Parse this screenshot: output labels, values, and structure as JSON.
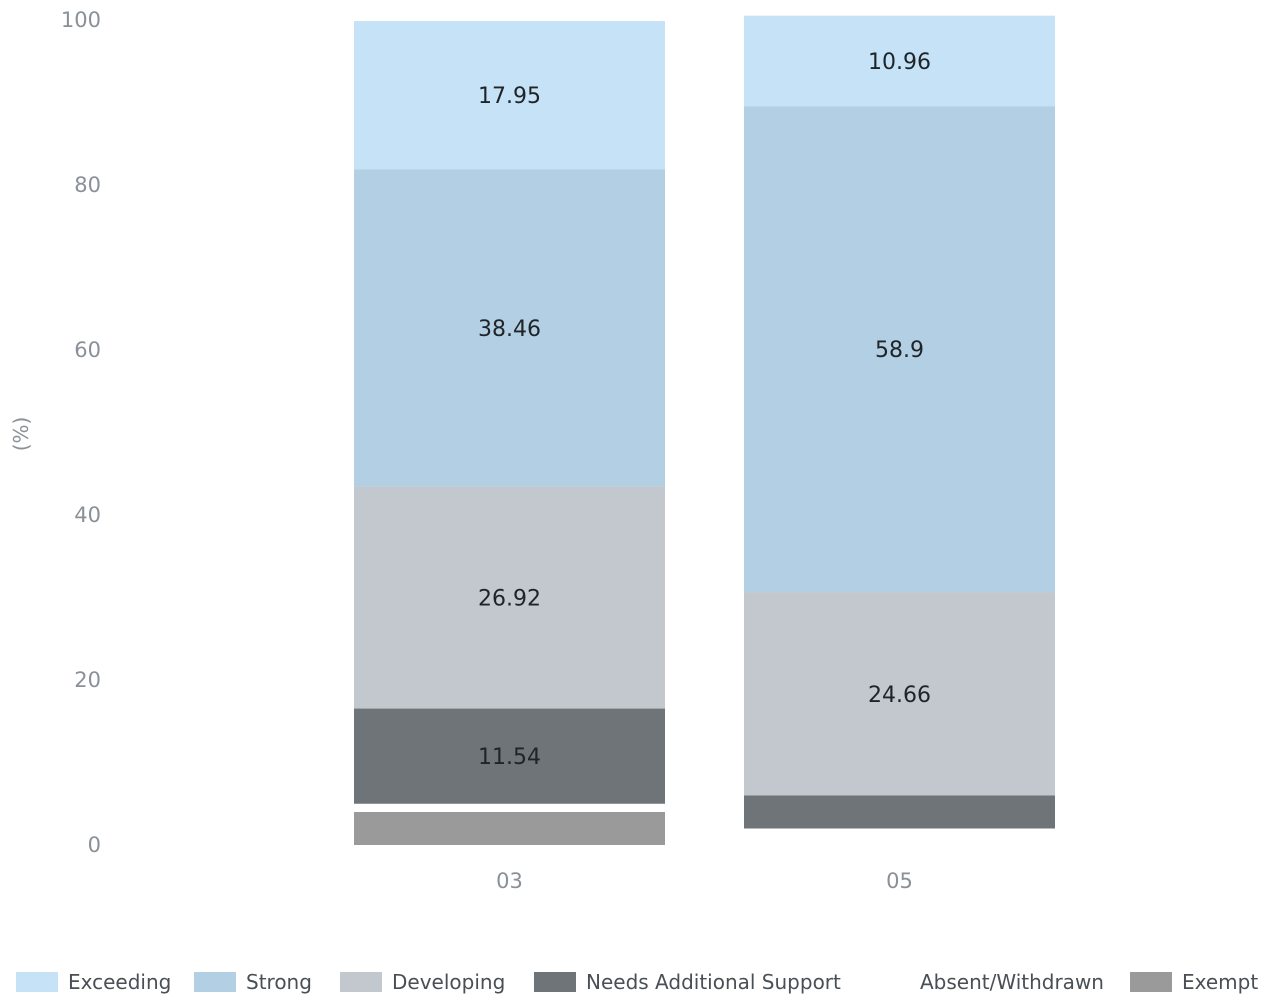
{
  "chart_data": {
    "type": "bar",
    "stacked": true,
    "categories": [
      "03",
      "05"
    ],
    "series": [
      {
        "name": "Exempt",
        "color": "#9a9a9a",
        "values": [
          4,
          0
        ]
      },
      {
        "name": "Absent/Withdrawn",
        "color": "#ffffff",
        "values": [
          1,
          2
        ]
      },
      {
        "name": "Needs Additional Support",
        "color": "#6f7478",
        "values": [
          11.54,
          4
        ]
      },
      {
        "name": "Developing",
        "color": "#c3c8ce",
        "values": [
          26.92,
          24.66
        ]
      },
      {
        "name": "Strong",
        "color": "#b3cfe3",
        "values": [
          38.46,
          58.9
        ]
      },
      {
        "name": "Exceeding",
        "color": "#c6e2f6",
        "values": [
          17.95,
          10.96
        ]
      }
    ],
    "data_labels": [
      {
        "category": "03",
        "series": "Needs Additional Support",
        "text": "11.54"
      },
      {
        "category": "03",
        "series": "Developing",
        "text": "26.92"
      },
      {
        "category": "03",
        "series": "Strong",
        "text": "38.46"
      },
      {
        "category": "03",
        "series": "Exceeding",
        "text": "17.95"
      },
      {
        "category": "05",
        "series": "Developing",
        "text": "24.66"
      },
      {
        "category": "05",
        "series": "Strong",
        "text": "58.9"
      },
      {
        "category": "05",
        "series": "Exceeding",
        "text": "10.96"
      }
    ],
    "legend_order": [
      "Exceeding",
      "Strong",
      "Developing",
      "Needs Additional Support",
      "Absent/Withdrawn",
      "Exempt"
    ],
    "legend_position": "bottom",
    "y_ticks": [
      0,
      20,
      40,
      60,
      80,
      100
    ],
    "ylim": [
      0,
      100
    ],
    "ylabel": "(%)",
    "xlabel": "",
    "title": "",
    "grid": false
  }
}
